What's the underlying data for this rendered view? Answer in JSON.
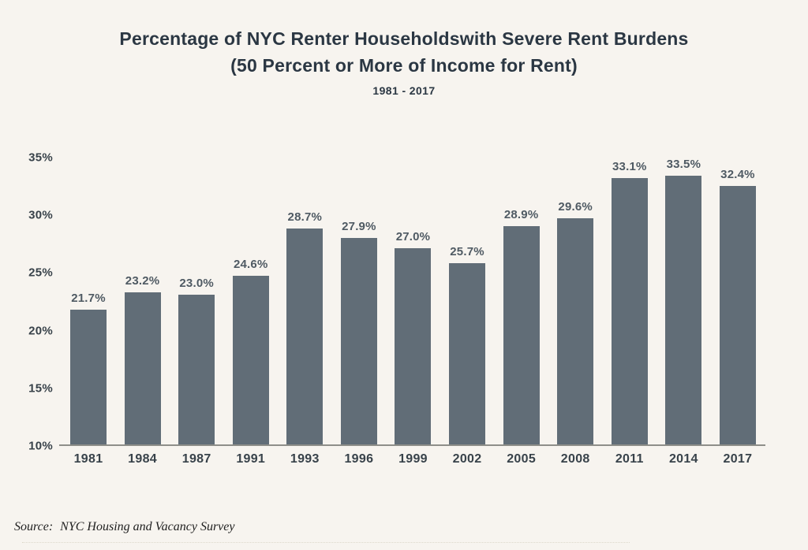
{
  "background_color": "#f7f4ef",
  "chart_data": {
    "type": "bar",
    "title": "Percentage of NYC Renter Householdswith Severe Rent Burdens",
    "subtitle": "(50 Percent or More of Income for Rent)",
    "period": "1981 - 2017",
    "categories": [
      "1981",
      "1984",
      "1987",
      "1991",
      "1993",
      "1996",
      "1999",
      "2002",
      "2005",
      "2008",
      "2011",
      "2014",
      "2017"
    ],
    "values": [
      21.7,
      23.2,
      23.0,
      24.6,
      28.7,
      27.9,
      27.0,
      25.7,
      28.9,
      29.6,
      33.1,
      33.5,
      32.4
    ],
    "value_labels": [
      "21.7%",
      "23.2%",
      "23.0%",
      "24.6%",
      "28.7%",
      "27.9%",
      "27.0%",
      "25.7%",
      "28.9%",
      "29.6%",
      "33.1%",
      "33.5%",
      "32.4%"
    ],
    "xlabel": "",
    "ylabel": "",
    "ylim": [
      10,
      35
    ],
    "ytick_values": [
      35,
      30,
      25,
      20,
      15,
      10
    ],
    "yticks": [
      "35%",
      "30%",
      "25%",
      "20%",
      "15%",
      "10%"
    ],
    "grid": false,
    "legend": "none",
    "bar_color": "#616d77",
    "value_label_color": "#4f5a63",
    "axis_label_color": "#38424a",
    "title_color": "#2b3743",
    "axis_line_color": "#8e8e89"
  },
  "source": {
    "label": "Source:",
    "text": "NYC Housing and Vacancy Survey"
  }
}
